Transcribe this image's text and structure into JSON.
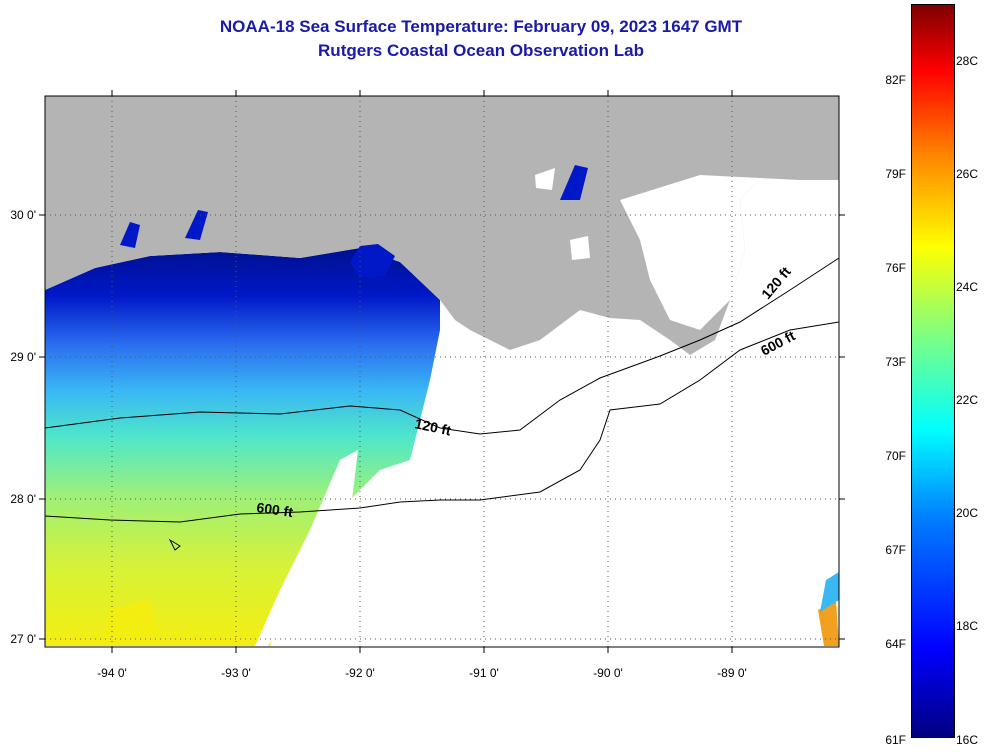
{
  "header": {
    "title_line1": "NOAA-18 Sea Surface Temperature:  February 09, 2023 1647 GMT",
    "title_line2": "Rutgers Coastal Ocean Observation Lab"
  },
  "map": {
    "lat_labels": [
      "30 0'",
      "29 0'",
      "28 0'",
      "27 0'"
    ],
    "lon_labels": [
      "-94 0'",
      "-93 0'",
      "-92 0'",
      "-91 0'",
      "-90 0'",
      "-89 0'"
    ],
    "lat_range": [
      26.95,
      30.85
    ],
    "lon_range": [
      -94.5,
      -88.1
    ],
    "contours": [
      {
        "label": "120 ft"
      },
      {
        "label": "120 ft"
      },
      {
        "label": "600 ft"
      },
      {
        "label": "600 ft"
      }
    ],
    "colors": {
      "land": "#b4b4b4",
      "no_data": "#ffffff",
      "gridlines": "dotted"
    }
  },
  "colorbar": {
    "fahrenheit_labels": [
      "82F",
      "79F",
      "76F",
      "73F",
      "70F",
      "67F",
      "64F",
      "61F"
    ],
    "celsius_labels": [
      "28C",
      "26C",
      "24C",
      "22C",
      "20C",
      "18C",
      "16C"
    ],
    "range_c": [
      16,
      28.6
    ],
    "colormap": "jet"
  }
}
